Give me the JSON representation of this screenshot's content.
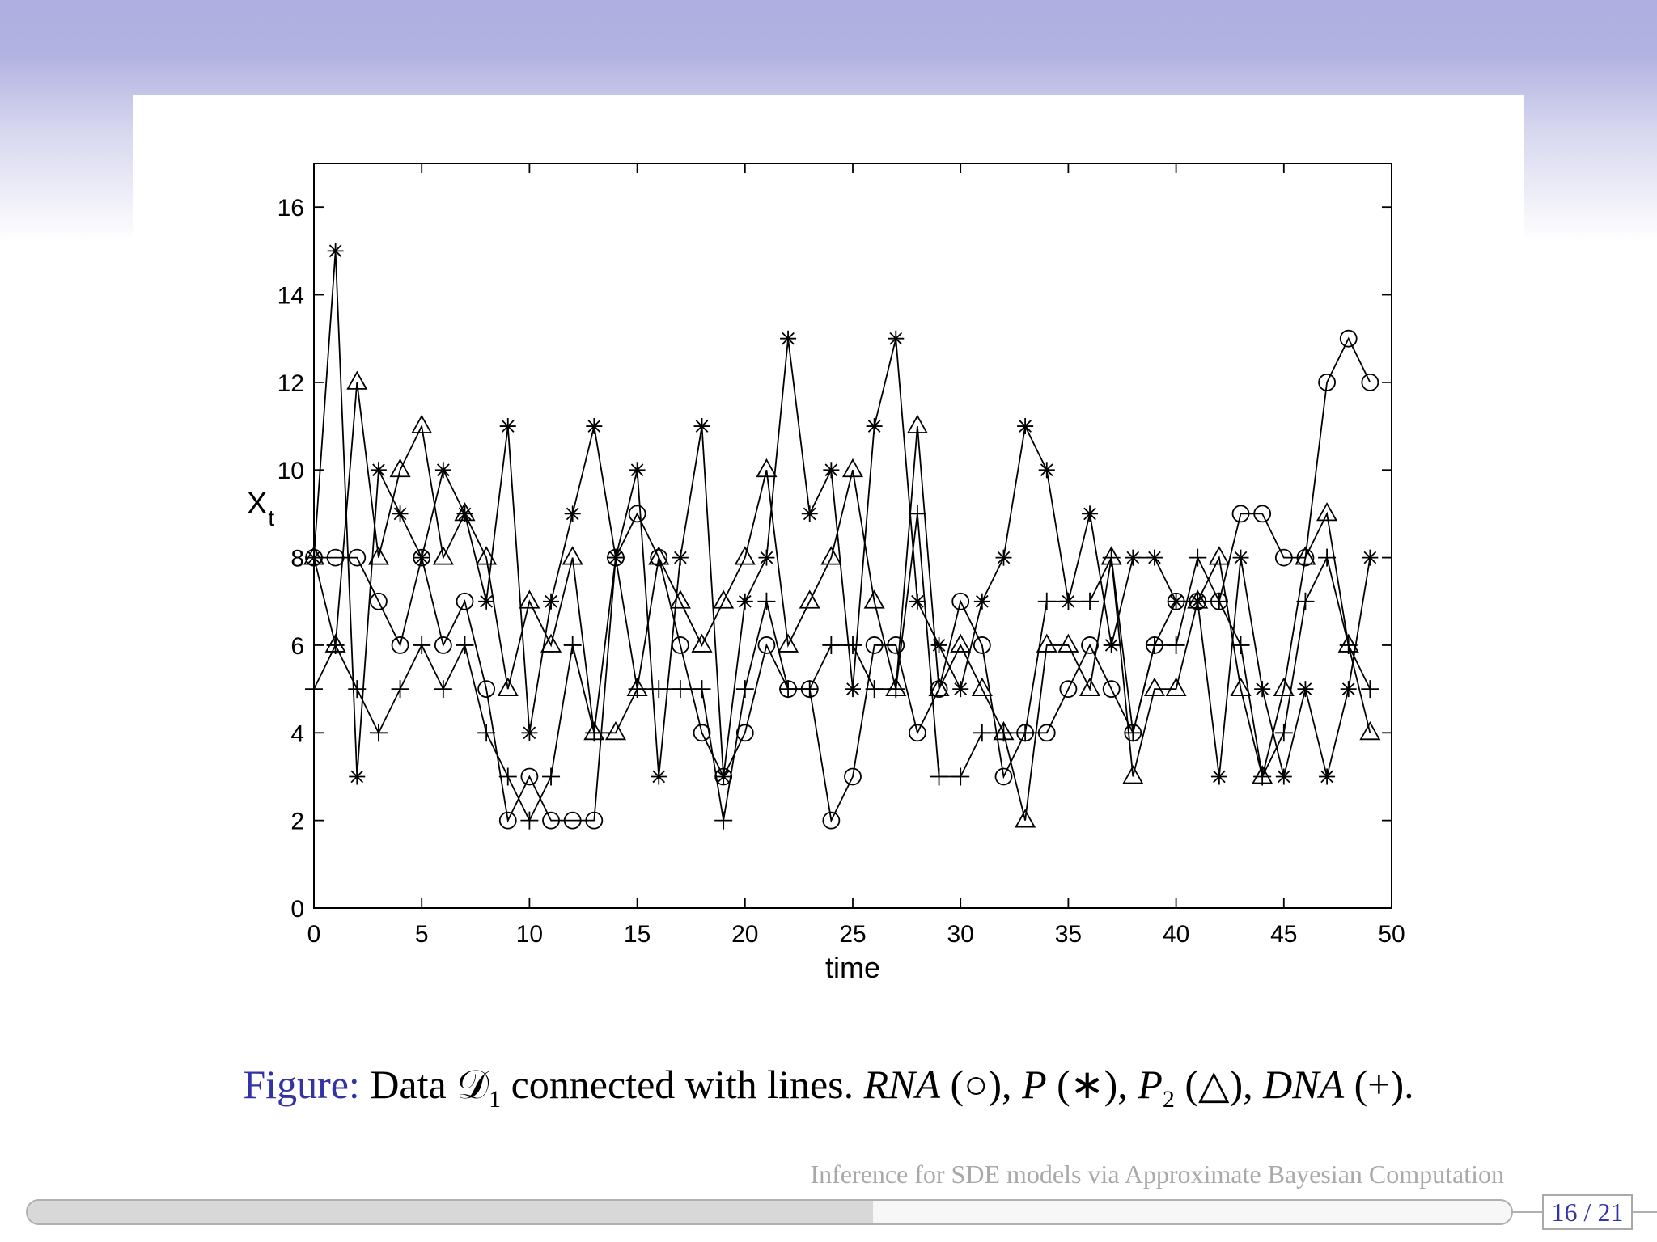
{
  "slide": {
    "caption": {
      "label": "Figure:",
      "text_pre": "Data",
      "dataset_symbol": "𝒟",
      "dataset_sub": "1",
      "text_mid": "connected with lines.",
      "rna": "RNA",
      "rna_marker": "(○),",
      "p": "P",
      "p_marker": "(∗),",
      "p2": "P",
      "p2_sub": "2",
      "p2_marker": "(△),",
      "dna": "DNA",
      "dna_marker": "(+)."
    },
    "footer_title": "Inference for SDE models via Approximate Bayesian Computation",
    "page": "16 / 21",
    "progress": 0.57
  },
  "chart_data": {
    "type": "line",
    "title": "",
    "xlabel": "time",
    "ylabel": "X",
    "ylabel_sub": "t",
    "xlim": [
      0,
      50
    ],
    "ylim": [
      0,
      17
    ],
    "xticks": [
      0,
      5,
      10,
      15,
      20,
      25,
      30,
      35,
      40,
      45,
      50
    ],
    "yticks": [
      0,
      2,
      4,
      6,
      8,
      10,
      12,
      14,
      16
    ],
    "grid": false,
    "legend": "none",
    "x": [
      0,
      1,
      2,
      3,
      4,
      5,
      6,
      7,
      8,
      9,
      10,
      11,
      12,
      13,
      14,
      15,
      16,
      17,
      18,
      19,
      20,
      21,
      22,
      23,
      24,
      25,
      26,
      27,
      28,
      29,
      30,
      31,
      32,
      33,
      34,
      35,
      36,
      37,
      38,
      39,
      40,
      41,
      42,
      43,
      44,
      45,
      46,
      47,
      48,
      49
    ],
    "series": [
      {
        "marker": "circle",
        "values": [
          8,
          8,
          8,
          7,
          6,
          8,
          6,
          7,
          5,
          2,
          3,
          2,
          2,
          2,
          8,
          9,
          8,
          6,
          4,
          3,
          4,
          6,
          5,
          5,
          2,
          3,
          6,
          6,
          4,
          5,
          7,
          6,
          3,
          4,
          4,
          5,
          6,
          5,
          4,
          6,
          7,
          7,
          7,
          9,
          9,
          8,
          8,
          12,
          13,
          12
        ]
      },
      {
        "marker": "asterisk",
        "values": [
          8,
          15,
          3,
          10,
          9,
          8,
          10,
          9,
          7,
          11,
          4,
          7,
          9,
          11,
          8,
          10,
          3,
          8,
          11,
          3,
          7,
          8,
          13,
          9,
          10,
          5,
          11,
          13,
          7,
          6,
          5,
          7,
          8,
          11,
          10,
          7,
          9,
          6,
          8,
          8,
          7,
          7,
          3,
          8,
          5,
          3,
          5,
          3,
          5,
          8
        ]
      },
      {
        "marker": "triangle",
        "values": [
          8,
          6,
          12,
          8,
          10,
          11,
          8,
          9,
          8,
          5,
          7,
          6,
          8,
          4,
          4,
          5,
          8,
          7,
          6,
          7,
          8,
          10,
          6,
          7,
          8,
          10,
          7,
          5,
          11,
          5,
          6,
          5,
          4,
          2,
          6,
          6,
          5,
          8,
          3,
          5,
          5,
          7,
          8,
          5,
          3,
          5,
          8,
          9,
          6,
          4
        ]
      },
      {
        "marker": "plus",
        "values": [
          5,
          6,
          5,
          4,
          5,
          6,
          5,
          6,
          4,
          3,
          2,
          3,
          6,
          4,
          8,
          5,
          5,
          5,
          5,
          2,
          5,
          7,
          5,
          5,
          6,
          6,
          5,
          5,
          9,
          3,
          3,
          4,
          4,
          4,
          7,
          7,
          7,
          8,
          4,
          6,
          6,
          8,
          7,
          6,
          3,
          4,
          7,
          8,
          6,
          5
        ]
      }
    ]
  }
}
